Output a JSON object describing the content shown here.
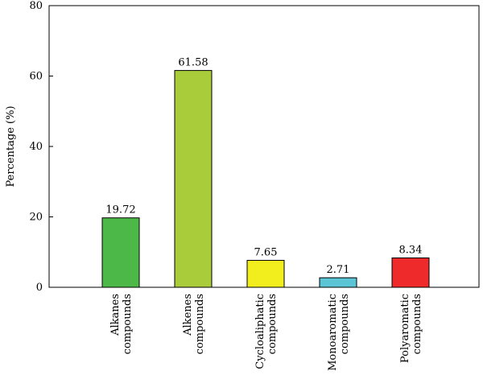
{
  "chart_data": {
    "type": "bar",
    "title": "",
    "xlabel": "",
    "ylabel": "Percentage (%)",
    "ylim": [
      0,
      80
    ],
    "yticks": [
      0,
      20,
      40,
      60,
      80
    ],
    "grid": false,
    "legend": "none",
    "categories": [
      [
        "Alkanes",
        "compounds"
      ],
      [
        "Alkenes",
        "compounds"
      ],
      [
        "Cycloaliphatic",
        "compounds"
      ],
      [
        "Monoaromatic",
        "compounds"
      ],
      [
        "Polyaromatic",
        "compounds"
      ]
    ],
    "values": [
      19.72,
      61.58,
      7.65,
      2.71,
      8.34
    ],
    "value_labels": [
      "19.72",
      "61.58",
      "7.65",
      "2.71",
      "8.34"
    ],
    "colors": [
      "#4cb847",
      "#a8cc3a",
      "#f2ee1e",
      "#5bc5d6",
      "#ee2a2a"
    ]
  }
}
